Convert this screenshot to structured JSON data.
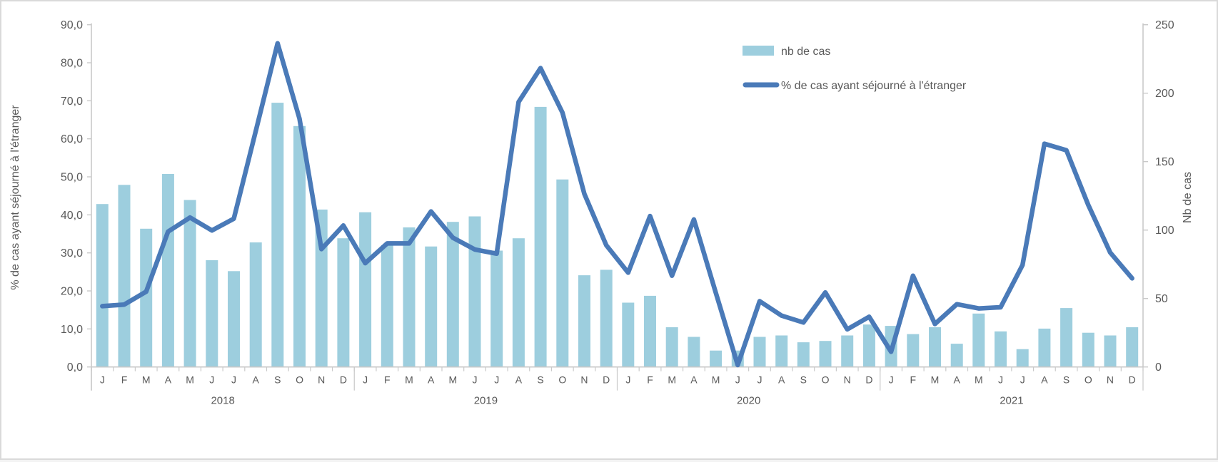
{
  "chart_data": {
    "type": "bar",
    "combo": "bar + line (dual axis)",
    "title": "",
    "grid": "off",
    "background": "#ffffff",
    "years": [
      "2018",
      "2019",
      "2020",
      "2021"
    ],
    "month_letters": [
      "J",
      "F",
      "M",
      "A",
      "M",
      "J",
      "J",
      "A",
      "S",
      "O",
      "N",
      "D"
    ],
    "left_axis": {
      "title": "% de cas ayant séjourné à l'étranger",
      "min": 0,
      "max": 90,
      "tick_step": 10,
      "tick_labels": [
        "0,0",
        "10,0",
        "20,0",
        "30,0",
        "40,0",
        "50,0",
        "60,0",
        "70,0",
        "80,0",
        "90,0"
      ]
    },
    "right_axis": {
      "title": "Nb de cas",
      "min": 0,
      "max": 250,
      "tick_step": 50,
      "tick_labels": [
        "0",
        "50",
        "100",
        "150",
        "200",
        "250"
      ]
    },
    "series": [
      {
        "name": "nb de cas",
        "type": "bar",
        "axis": "right",
        "color": "#9dcede",
        "values": [
          119,
          133,
          101,
          141,
          122,
          78,
          70,
          91,
          193,
          176,
          115,
          94,
          113,
          89,
          102,
          88,
          106,
          110,
          85,
          94,
          190,
          137,
          67,
          71,
          47,
          52,
          29,
          22,
          12,
          12,
          22,
          23,
          18,
          19,
          23,
          31,
          30,
          24,
          29,
          17,
          39,
          26,
          13,
          28,
          43,
          25,
          23,
          29
        ]
      },
      {
        "name": "% de cas ayant séjourné à l'étranger",
        "type": "line",
        "axis": "left",
        "color": "#4a7ab8",
        "values": [
          16.0,
          16.4,
          19.8,
          35.6,
          39.3,
          35.9,
          39.0,
          62.0,
          85.1,
          65.3,
          31.0,
          37.2,
          27.3,
          32.5,
          32.5,
          40.9,
          34.0,
          30.9,
          29.8,
          69.7,
          78.6,
          66.9,
          45.5,
          32.0,
          24.8,
          39.7,
          24.0,
          38.8,
          19.5,
          0.5,
          17.3,
          13.5,
          11.7,
          19.6,
          9.9,
          13.2,
          4.0,
          24.0,
          11.3,
          16.5,
          15.4,
          15.7,
          26.8,
          58.7,
          57.0,
          42.6,
          30.1,
          23.3
        ]
      }
    ],
    "legend": {
      "position": "top-right",
      "items": [
        {
          "label": "nb de cas",
          "swatch": "bar"
        },
        {
          "label": "% de cas ayant séjourné à l'étranger",
          "swatch": "line"
        }
      ]
    },
    "axis_color": "#c9c9c9",
    "text_color": "#595959"
  }
}
